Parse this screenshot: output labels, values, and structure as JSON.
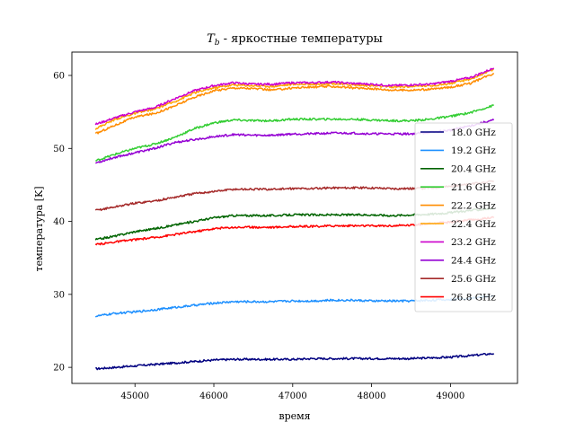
{
  "chart_data": {
    "type": "line",
    "title": "T_b - яркостные температуры",
    "title_parts": {
      "symbol": "T",
      "subscript": "b",
      "rest": " - яркостные температуры"
    },
    "xlabel": "время",
    "ylabel": "температура [K]",
    "xlim": [
      44200,
      49850
    ],
    "ylim": [
      17.8,
      63.2
    ],
    "xticks": [
      45000,
      46000,
      47000,
      48000,
      49000
    ],
    "yticks": [
      20,
      30,
      40,
      50,
      60
    ],
    "grid": false,
    "legend_position": "center-right",
    "x": [
      44500,
      44750,
      45000,
      45250,
      45500,
      45750,
      46000,
      46250,
      46500,
      46750,
      47000,
      47250,
      47500,
      47750,
      48000,
      48250,
      48500,
      48750,
      49000,
      49250,
      49550
    ],
    "series": [
      {
        "name": "18.0 GHz",
        "color": "#000080",
        "values": [
          19.8,
          20.0,
          20.2,
          20.4,
          20.6,
          20.8,
          21.0,
          21.1,
          21.1,
          21.1,
          21.1,
          21.2,
          21.2,
          21.2,
          21.2,
          21.2,
          21.2,
          21.3,
          21.4,
          21.6,
          21.9
        ]
      },
      {
        "name": "19.2 GHz",
        "color": "#1e90ff",
        "values": [
          27.0,
          27.4,
          27.6,
          27.9,
          28.2,
          28.5,
          28.8,
          29.0,
          29.0,
          29.0,
          29.1,
          29.1,
          29.2,
          29.2,
          29.1,
          29.1,
          29.1,
          29.2,
          29.3,
          29.5,
          29.8
        ]
      },
      {
        "name": "20.4 GHz",
        "color": "#006400",
        "values": [
          37.5,
          38.0,
          38.6,
          39.0,
          39.5,
          40.0,
          40.5,
          40.8,
          40.8,
          40.8,
          40.9,
          40.9,
          40.9,
          40.9,
          40.9,
          40.8,
          40.9,
          41.0,
          41.2,
          41.5,
          41.8
        ]
      },
      {
        "name": "21.6 GHz",
        "color": "#32cd32",
        "values": [
          48.3,
          49.2,
          50.0,
          50.6,
          51.5,
          52.7,
          53.5,
          53.9,
          53.8,
          53.8,
          54.0,
          54.0,
          54.0,
          54.0,
          53.9,
          53.8,
          53.8,
          54.0,
          54.4,
          54.9,
          55.9
        ]
      },
      {
        "name": "22.2 GHz",
        "color": "#ff8c00",
        "values": [
          52.0,
          53.2,
          54.3,
          54.8,
          55.8,
          57.0,
          57.9,
          58.3,
          58.2,
          58.0,
          58.3,
          58.4,
          58.5,
          58.3,
          58.2,
          58.0,
          58.0,
          58.1,
          58.4,
          58.9,
          60.3
        ]
      },
      {
        "name": "22.4 GHz",
        "color": "#ffa500",
        "values": [
          52.7,
          54.0,
          54.8,
          55.4,
          56.4,
          57.6,
          58.3,
          58.7,
          58.6,
          58.5,
          58.8,
          58.8,
          58.9,
          58.7,
          58.6,
          58.4,
          58.5,
          58.6,
          58.9,
          59.5,
          60.8
        ]
      },
      {
        "name": "23.2 GHz",
        "color": "#cc00cc",
        "values": [
          53.3,
          54.2,
          55.0,
          55.6,
          56.8,
          57.9,
          58.6,
          59.0,
          58.8,
          58.8,
          59.0,
          59.0,
          59.1,
          58.9,
          58.8,
          58.6,
          58.7,
          58.8,
          59.2,
          59.7,
          61.0
        ]
      },
      {
        "name": "24.4 GHz",
        "color": "#9400d3",
        "values": [
          48.0,
          48.8,
          49.4,
          50.0,
          50.8,
          51.2,
          51.6,
          51.9,
          51.8,
          51.8,
          52.0,
          52.0,
          52.1,
          52.1,
          52.0,
          52.0,
          52.0,
          52.2,
          52.5,
          53.1,
          53.9
        ]
      },
      {
        "name": "25.6 GHz",
        "color": "#a52a2a",
        "values": [
          41.5,
          42.0,
          42.5,
          42.8,
          43.3,
          43.8,
          44.1,
          44.4,
          44.4,
          44.4,
          44.5,
          44.5,
          44.6,
          44.6,
          44.6,
          44.5,
          44.5,
          44.6,
          44.8,
          45.1,
          45.5
        ]
      },
      {
        "name": "26.8 GHz",
        "color": "#ff0000",
        "values": [
          36.8,
          37.2,
          37.5,
          37.8,
          38.2,
          38.6,
          39.0,
          39.2,
          39.2,
          39.2,
          39.3,
          39.3,
          39.4,
          39.4,
          39.4,
          39.4,
          39.5,
          39.7,
          39.9,
          40.2,
          40.5
        ]
      }
    ]
  }
}
